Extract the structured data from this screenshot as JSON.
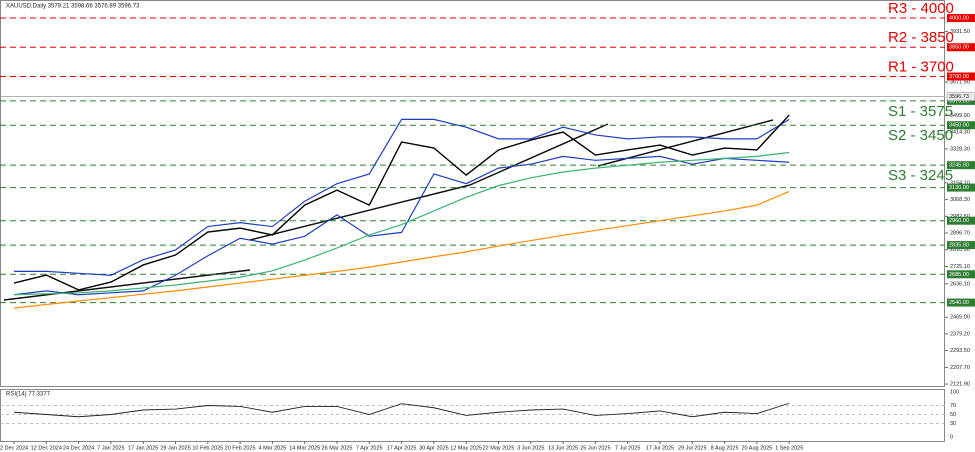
{
  "chart_data": {
    "type": "line",
    "title": "XAUUSD,Daily 3579.21 3598.66 3576.89 3596.73",
    "categories": [
      "2 Dec 2024",
      "12 Dec 2024",
      "24 Dec 2024",
      "7 Jan 2025",
      "17 Jan 2025",
      "29 Jan 2025",
      "10 Feb 2025",
      "20 Feb 2025",
      "4 Mar 2025",
      "14 Mar 2025",
      "26 Mar 2025",
      "7 Apr 2025",
      "17 Apr 2025",
      "30 Apr 2025",
      "12 May 2025",
      "22 May 2025",
      "3 Jun 2025",
      "13 Jun 2025",
      "25 Jun 2025",
      "7 Jul 2025",
      "17 Jul 2025",
      "29 Jul 2025",
      "8 Aug 2025",
      "20 Aug 2025",
      "1 Sep 2025"
    ],
    "ylim": [
      2117,
      4072
    ],
    "yticks": [
      {
        "value": 2121.9,
        "label": "2121.90"
      },
      {
        "value": 2207.7,
        "label": "2207.70"
      },
      {
        "value": 2293.5,
        "label": "2293.50"
      },
      {
        "value": 2379.2,
        "label": "2379.20"
      },
      {
        "value": 2465,
        "label": "2465.00"
      },
      {
        "value": 2636.1,
        "label": "2636.10"
      },
      {
        "value": 2725.1,
        "label": "2725.10"
      },
      {
        "value": 2810.9,
        "label": "2810.90"
      },
      {
        "value": 2896.7,
        "label": "2896.70"
      },
      {
        "value": 2982.5,
        "label": "2982.50"
      },
      {
        "value": 3068.3,
        "label": "3068.30"
      },
      {
        "value": 3154.1,
        "label": "3154.10"
      },
      {
        "value": 3328.3,
        "label": "3328.30"
      },
      {
        "value": 3414.3,
        "label": "3414.30"
      },
      {
        "value": 3499.9,
        "label": "3499.90"
      },
      {
        "value": 3671.5,
        "label": "3671.50"
      },
      {
        "value": 3931.5,
        "label": "3931.50"
      }
    ],
    "series": [
      {
        "color": "#1f3fbf",
        "values": [
          2700,
          2700,
          2690,
          2680,
          2760,
          2810,
          2930,
          2950,
          2930,
          3060,
          3150,
          3200,
          3480,
          3480,
          3440,
          3380,
          3380,
          3440,
          3400,
          3380,
          3390,
          3390,
          3380,
          3380,
          3480
        ]
      },
      {
        "color": "#1f3fbf",
        "values": [
          2580,
          2600,
          2580,
          2590,
          2600,
          2680,
          2780,
          2870,
          2840,
          2880,
          2990,
          2880,
          2900,
          3200,
          3150,
          3230,
          3250,
          3290,
          3270,
          3280,
          3290,
          3250,
          3280,
          3270,
          3260
        ]
      },
      {
        "color": "#3cb371",
        "values": [
          2580,
          2585,
          2590,
          2600,
          2615,
          2630,
          2650,
          2670,
          2703,
          2758,
          2820,
          2887,
          2940,
          3010,
          3080,
          3140,
          3180,
          3210,
          3230,
          3245,
          3260,
          3270,
          3280,
          3290,
          3310
        ]
      },
      {
        "color": "#ff8c00",
        "values": [
          2512,
          2530,
          2548,
          2565,
          2583,
          2600,
          2620,
          2640,
          2660,
          2680,
          2700,
          2722,
          2748,
          2775,
          2800,
          2830,
          2858,
          2885,
          2910,
          2935,
          2960,
          2985,
          3010,
          3040,
          3110
        ]
      },
      {
        "color": "#000000",
        "values": [
          2640,
          2681,
          2605,
          2645,
          2733,
          2784,
          2902,
          2922,
          2887,
          3040,
          3117,
          3040,
          3364,
          3333,
          3194,
          3323,
          3374,
          3415,
          3297,
          3323,
          3348,
          3297,
          3333,
          3323,
          3502
        ]
      }
    ],
    "price_label": {
      "value": 3596.73,
      "label": "3596.73"
    },
    "levels": [
      {
        "label": "R3 - 4000",
        "value": 4000,
        "value_label": "4000.00",
        "color": "#e60000"
      },
      {
        "label": "R2 - 3850",
        "value": 3850,
        "value_label": "3850.00",
        "color": "#e60000"
      },
      {
        "label": "R1 - 3700",
        "value": 3700,
        "value_label": "3700.00",
        "color": "#e60000"
      },
      {
        "label": "S1 - 3575",
        "value": 3575,
        "value_label": "3575.00",
        "color": "#2e7d32"
      },
      {
        "label": "S2 - 3450",
        "value": 3450,
        "value_label": "3450.00",
        "color": "#2e7d32"
      },
      {
        "label": "S3 - 3245",
        "value": 3245,
        "value_label": "3245.00",
        "color": "#2e7d32"
      },
      {
        "value": 3130,
        "value_label": "3130.00",
        "color": "#2e7d32"
      },
      {
        "value": 2960,
        "value_label": "2960.00",
        "color": "#2e7d32"
      },
      {
        "value": 2835,
        "value_label": "2835.00",
        "color": "#2e7d32"
      },
      {
        "value": 2685,
        "value_label": "2685.00",
        "color": "#2e7d32"
      },
      {
        "value": 2540,
        "value_label": "2540.00",
        "color": "#2e7d32"
      }
    ],
    "rsi": {
      "label": "RSI(14) 77.3377",
      "ylim": [
        0,
        100
      ],
      "yticks": [
        100,
        70,
        50,
        30,
        0
      ],
      "color": "#222222",
      "values": [
        55,
        50,
        45,
        50,
        60,
        62,
        70,
        68,
        55,
        68,
        68,
        50,
        74,
        65,
        48,
        55,
        60,
        62,
        48,
        52,
        58,
        45,
        55,
        52,
        75
      ]
    }
  }
}
